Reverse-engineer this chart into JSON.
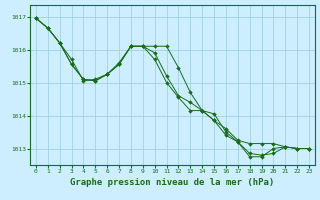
{
  "background_color": "#cceeff",
  "grid_color": "#99ccdd",
  "line_color": "#1a6b1a",
  "xlabel": "Graphe pression niveau de la mer (hPa)",
  "xlabel_fontsize": 6.5,
  "ylabel_ticks": [
    1013,
    1014,
    1015,
    1016,
    1017
  ],
  "xlim": [
    -0.5,
    23.5
  ],
  "ylim": [
    1012.5,
    1017.35
  ],
  "series": [
    {
      "x": [
        0,
        1,
        2,
        3,
        4,
        5,
        6,
        7,
        8,
        9,
        10,
        11,
        12,
        13,
        14,
        15,
        16,
        17,
        18,
        19,
        20,
        21,
        22,
        23
      ],
      "y": [
        1016.95,
        1016.65,
        1016.2,
        1015.55,
        1015.1,
        1015.05,
        1015.25,
        1015.55,
        1016.1,
        1016.1,
        1015.7,
        1015.0,
        1014.55,
        1014.15,
        1014.15,
        1013.85,
        1013.4,
        1013.2,
        1012.75,
        1012.75,
        1013.0,
        1013.05,
        1013.0,
        1013.0
      ]
    },
    {
      "x": [
        0,
        1,
        2,
        3,
        4,
        5,
        6,
        7,
        8,
        9,
        10,
        11,
        12,
        13,
        14,
        15,
        16,
        17,
        18,
        19,
        20,
        21,
        22,
        23
      ],
      "y": [
        1016.95,
        1016.65,
        1016.2,
        1015.7,
        1015.05,
        1015.1,
        1015.25,
        1015.6,
        1016.1,
        1016.1,
        1015.9,
        1015.2,
        1014.6,
        1014.4,
        1014.15,
        1014.05,
        1013.5,
        1013.2,
        1012.85,
        1012.8,
        1012.85,
        1013.05,
        1013.0,
        1013.0
      ]
    },
    {
      "x": [
        0,
        1,
        2,
        3,
        4,
        5,
        6,
        7,
        8,
        9,
        10,
        11,
        12,
        13,
        14,
        15,
        16,
        17,
        18,
        19,
        20,
        21,
        22,
        23
      ],
      "y": [
        1016.95,
        1016.65,
        1016.2,
        1015.55,
        1015.1,
        1015.05,
        1015.25,
        1015.55,
        1016.1,
        1016.1,
        1016.1,
        1016.1,
        1015.45,
        1014.7,
        1014.15,
        1013.85,
        1013.6,
        1013.25,
        1013.15,
        1013.15,
        1013.15,
        1013.05,
        1013.0,
        1013.0
      ]
    }
  ]
}
